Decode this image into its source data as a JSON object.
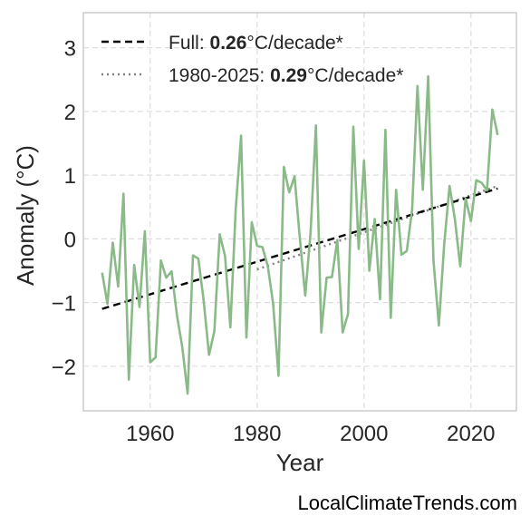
{
  "watermark": "LocalClimateTrends.com",
  "chart_data": {
    "type": "line",
    "xlabel": "Year",
    "ylabel": "Anomaly (°C)",
    "xlim": [
      1947.5,
      2028.5
    ],
    "ylim": [
      -2.7,
      3.55
    ],
    "xticks": [
      1960,
      1980,
      2000,
      2020
    ],
    "yticks": [
      -2,
      -1,
      0,
      1,
      2,
      3
    ],
    "ytick_labels": [
      "−2",
      "−1",
      "0",
      "1",
      "2",
      "3"
    ],
    "grid": true,
    "legend_position": "top-left",
    "colors": {
      "series": "#8aba87",
      "full_trend": "#000000",
      "recent_trend": "#808080",
      "text": "#262626",
      "grid": "#dddddd",
      "frame": "#cccccc"
    },
    "legend": [
      {
        "pre": "Full: ",
        "value": "0.26",
        "post": "°C/decade*",
        "style": "dashed"
      },
      {
        "pre": "1980-2025: ",
        "value": "0.29",
        "post": "°C/decade*",
        "style": "dotted"
      }
    ],
    "series": [
      {
        "x": [
          1951,
          1952,
          1953,
          1954,
          1955,
          1956,
          1957,
          1958,
          1959,
          1960,
          1961,
          1962,
          1963,
          1964,
          1965,
          1966,
          1967,
          1968,
          1969,
          1970,
          1971,
          1972,
          1973,
          1974,
          1975,
          1976,
          1977,
          1978,
          1979,
          1980,
          1981,
          1982,
          1983,
          1984,
          1985,
          1986,
          1987,
          1988,
          1989,
          1990,
          1991,
          1992,
          1993,
          1994,
          1995,
          1996,
          1997,
          1998,
          1999,
          2000,
          2001,
          2002,
          2003,
          2004,
          2005,
          2006,
          2007,
          2008,
          2009,
          2010,
          2011,
          2012,
          2013,
          2014,
          2015,
          2016,
          2017,
          2018,
          2019,
          2020,
          2021,
          2022,
          2023,
          2024,
          2025
        ],
        "values": [
          -0.53,
          -1.02,
          -0.06,
          -0.75,
          0.71,
          -2.21,
          -0.41,
          -1.07,
          0.12,
          -1.94,
          -1.86,
          -0.34,
          -0.61,
          -0.51,
          -1.2,
          -1.7,
          -2.43,
          -0.26,
          -0.31,
          -0.97,
          -1.82,
          -1.45,
          0.07,
          -0.27,
          -1.39,
          0.47,
          1.62,
          -1.55,
          0.26,
          -0.11,
          -0.13,
          -0.43,
          -1.02,
          -2.15,
          1.13,
          0.73,
          0.98,
          0.0,
          -0.89,
          0.1,
          1.78,
          -1.47,
          -0.61,
          -0.6,
          -0.02,
          -1.47,
          -1.18,
          1.76,
          -0.16,
          1.23,
          -0.5,
          0.31,
          -0.95,
          1.71,
          -1.24,
          0.77,
          -0.25,
          -0.19,
          0.46,
          2.4,
          0.77,
          2.55,
          -0.35,
          -1.36,
          -0.08,
          0.83,
          0.31,
          -0.43,
          0.63,
          0.28,
          0.92,
          0.88,
          0.76,
          2.03,
          1.63
        ]
      }
    ],
    "trend_lines": [
      {
        "name": "full",
        "x": [
          1951,
          2025
        ],
        "y": [
          -1.1,
          0.79
        ]
      },
      {
        "name": "recent",
        "x": [
          1980,
          2025
        ],
        "y": [
          -0.48,
          0.83
        ]
      }
    ]
  }
}
